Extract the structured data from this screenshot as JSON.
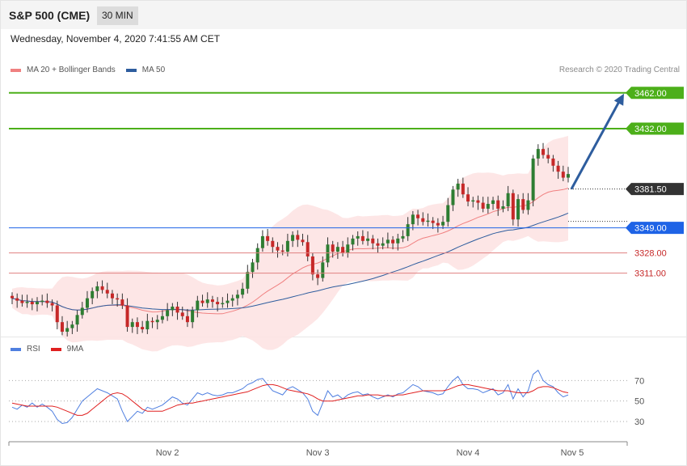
{
  "header": {
    "title": "S&P 500 (CME)",
    "timeframe": "30 MIN"
  },
  "datetime": "Wednesday, November 4, 2020 7:41:55 AM CET",
  "legend_main": [
    {
      "label": "MA 20 + Bollinger Bands",
      "color": "#f08080"
    },
    {
      "label": "MA 50",
      "color": "#2e5d9e"
    }
  ],
  "credit": "Research © 2020 Trading Central",
  "legend_rsi": [
    {
      "label": "RSI",
      "color": "#4f7fe0"
    },
    {
      "label": "9MA",
      "color": "#e02020"
    }
  ],
  "colors": {
    "up": "#2e7d32",
    "down": "#c62828",
    "resistance": "#4caf1a",
    "pivot": "#1e63e6",
    "support": "#e08080",
    "current": "#333333",
    "arrow": "#2e5d9e",
    "band": "#fde2e2"
  },
  "chart_data": [
    {
      "type": "candlestick",
      "title": "S&P 500 (CME)",
      "timeframe": "30 MIN",
      "x_labels": [
        "Nov 2",
        "Nov 3",
        "Nov 4",
        "Nov 5"
      ],
      "ylim": [
        3262,
        3472
      ],
      "levels": [
        {
          "value": 3462.0,
          "label": "3462.00",
          "kind": "resistance"
        },
        {
          "value": 3432.0,
          "label": "3432.00",
          "kind": "resistance"
        },
        {
          "value": 3381.5,
          "label": "3381.50",
          "kind": "current"
        },
        {
          "value": 3349.0,
          "label": "3349.00",
          "kind": "pivot"
        },
        {
          "value": 3328.0,
          "label": "3328.00",
          "kind": "support"
        },
        {
          "value": 3311.0,
          "label": "3311.00",
          "kind": "support"
        }
      ],
      "projection": {
        "from": 3381.5,
        "to": 3462
      },
      "close": [
        3290,
        3288,
        3286,
        3287,
        3285,
        3287,
        3288,
        3286,
        3284,
        3270,
        3262,
        3265,
        3268,
        3276,
        3282,
        3290,
        3296,
        3300,
        3297,
        3294,
        3290,
        3289,
        3284,
        3266,
        3270,
        3266,
        3264,
        3271,
        3270,
        3272,
        3275,
        3280,
        3283,
        3278,
        3275,
        3270,
        3280,
        3288,
        3286,
        3289,
        3287,
        3285,
        3286,
        3288,
        3290,
        3293,
        3298,
        3312,
        3320,
        3332,
        3342,
        3338,
        3333,
        3330,
        3329,
        3338,
        3343,
        3339,
        3337,
        3325,
        3310,
        3307,
        3320,
        3335,
        3329,
        3333,
        3328,
        3335,
        3340,
        3342,
        3338,
        3340,
        3336,
        3334,
        3336,
        3339,
        3336,
        3340,
        3342,
        3352,
        3360,
        3357,
        3354,
        3355,
        3353,
        3351,
        3354,
        3368,
        3381,
        3386,
        3377,
        3371,
        3372,
        3370,
        3365,
        3369,
        3372,
        3365,
        3367,
        3378,
        3356,
        3373,
        3364,
        3372,
        3407,
        3415,
        3410,
        3407,
        3401,
        3396,
        3391,
        3394
      ]
    },
    {
      "type": "line",
      "title": "RSI",
      "yticks": [
        30,
        50,
        70
      ],
      "ylim": [
        15,
        90
      ],
      "series": [
        {
          "name": "RSI",
          "values": [
            44,
            42,
            46,
            44,
            48,
            44,
            47,
            44,
            40,
            32,
            28,
            29,
            34,
            42,
            50,
            54,
            58,
            62,
            60,
            58,
            55,
            52,
            40,
            30,
            35,
            40,
            38,
            44,
            42,
            44,
            46,
            50,
            54,
            52,
            48,
            46,
            52,
            58,
            56,
            58,
            56,
            55,
            56,
            58,
            58,
            60,
            62,
            66,
            68,
            71,
            72,
            66,
            60,
            58,
            56,
            62,
            64,
            61,
            58,
            52,
            40,
            36,
            48,
            60,
            54,
            56,
            52,
            56,
            58,
            59,
            56,
            57,
            54,
            52,
            54,
            56,
            54,
            57,
            58,
            62,
            66,
            64,
            60,
            59,
            58,
            56,
            57,
            64,
            70,
            74,
            66,
            62,
            62,
            61,
            58,
            60,
            62,
            56,
            58,
            66,
            52,
            62,
            54,
            60,
            76,
            80,
            70,
            66,
            64,
            58,
            54,
            56
          ]
        },
        {
          "name": "9MA",
          "values": [
            48,
            47,
            46,
            45,
            45,
            45,
            45,
            45,
            45,
            44,
            42,
            40,
            38,
            36,
            36,
            38,
            42,
            46,
            50,
            54,
            57,
            58,
            57,
            54,
            50,
            46,
            42,
            40,
            40,
            40,
            40,
            42,
            44,
            46,
            47,
            48,
            48,
            49,
            50,
            51,
            52,
            53,
            54,
            55,
            56,
            57,
            58,
            59,
            61,
            63,
            65,
            66,
            66,
            65,
            63,
            61,
            60,
            59,
            58,
            57,
            55,
            52,
            50,
            50,
            50,
            51,
            52,
            53,
            54,
            55,
            55,
            56,
            56,
            56,
            55,
            55,
            55,
            56,
            56,
            57,
            58,
            59,
            60,
            60,
            60,
            60,
            60,
            61,
            63,
            65,
            66,
            66,
            65,
            64,
            63,
            62,
            61,
            60,
            60,
            60,
            59,
            58,
            58,
            58,
            60,
            63,
            64,
            64,
            63,
            61,
            59,
            58
          ]
        }
      ]
    }
  ]
}
